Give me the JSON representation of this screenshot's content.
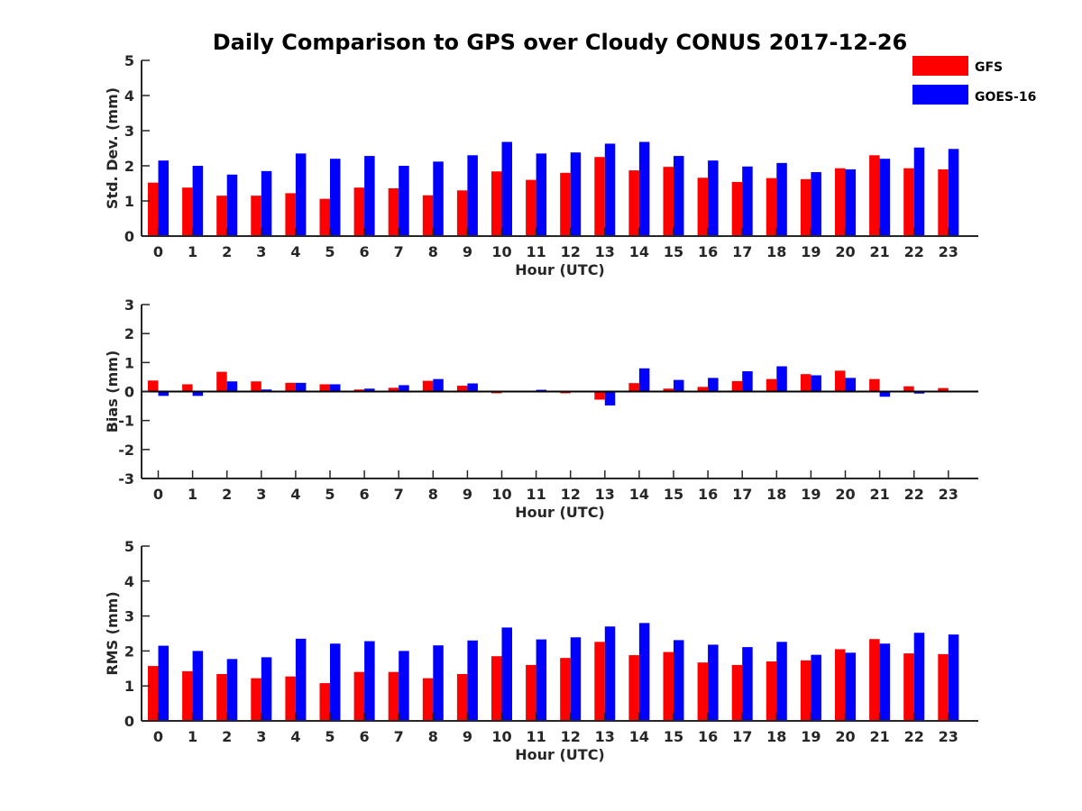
{
  "title": "Daily Comparison to GPS over Cloudy CONUS 2017-12-26",
  "legend": [
    {
      "name": "GFS",
      "color": "#ff0000"
    },
    {
      "name": "GOES-16",
      "color": "#0000ff"
    }
  ],
  "chart_data": [
    {
      "type": "bar",
      "xlabel": "Hour (UTC)",
      "ylabel": "Std. Dev. (mm)",
      "ylim": [
        0,
        5
      ],
      "yticks": [
        0,
        1,
        2,
        3,
        4,
        5
      ],
      "categories": [
        "0",
        "1",
        "2",
        "3",
        "4",
        "5",
        "6",
        "7",
        "8",
        "9",
        "10",
        "11",
        "12",
        "13",
        "14",
        "15",
        "16",
        "17",
        "18",
        "19",
        "20",
        "21",
        "22",
        "23"
      ],
      "series": [
        {
          "name": "GFS",
          "color": "#ff0000",
          "values": [
            1.52,
            1.38,
            1.15,
            1.15,
            1.22,
            1.06,
            1.38,
            1.36,
            1.16,
            1.3,
            1.84,
            1.6,
            1.8,
            2.25,
            1.87,
            1.97,
            1.66,
            1.54,
            1.65,
            1.62,
            1.93,
            2.3,
            1.93,
            1.9
          ]
        },
        {
          "name": "GOES-16",
          "color": "#0000ff",
          "values": [
            2.15,
            2.0,
            1.75,
            1.85,
            2.35,
            2.2,
            2.28,
            2.0,
            2.12,
            2.3,
            2.68,
            2.35,
            2.38,
            2.63,
            2.68,
            2.28,
            2.15,
            1.98,
            2.08,
            1.82,
            1.9,
            2.2,
            2.52,
            2.48
          ]
        }
      ]
    },
    {
      "type": "bar",
      "xlabel": "Hour (UTC)",
      "ylabel": "Bias (mm)",
      "ylim": [
        -3,
        3
      ],
      "yticks": [
        -3,
        -2,
        -1,
        0,
        1,
        2,
        3
      ],
      "categories": [
        "0",
        "1",
        "2",
        "3",
        "4",
        "5",
        "6",
        "7",
        "8",
        "9",
        "10",
        "11",
        "12",
        "13",
        "14",
        "15",
        "16",
        "17",
        "18",
        "19",
        "20",
        "21",
        "22",
        "23"
      ],
      "series": [
        {
          "name": "GFS",
          "color": "#ff0000",
          "values": [
            0.38,
            0.25,
            0.68,
            0.35,
            0.3,
            0.25,
            0.07,
            0.13,
            0.37,
            0.2,
            -0.06,
            0.0,
            -0.06,
            -0.28,
            0.29,
            0.1,
            0.16,
            0.36,
            0.43,
            0.6,
            0.72,
            0.43,
            0.18,
            0.12
          ]
        },
        {
          "name": "GOES-16",
          "color": "#0000ff",
          "values": [
            -0.15,
            -0.15,
            0.35,
            0.07,
            0.3,
            0.25,
            0.1,
            0.22,
            0.43,
            0.28,
            -0.03,
            0.06,
            -0.03,
            -0.48,
            0.8,
            0.4,
            0.47,
            0.7,
            0.87,
            0.56,
            0.47,
            -0.18,
            -0.07,
            -0.03
          ]
        }
      ]
    },
    {
      "type": "bar",
      "xlabel": "Hour (UTC)",
      "ylabel": "RMS (mm)",
      "ylim": [
        0,
        5
      ],
      "yticks": [
        0,
        1,
        2,
        3,
        4,
        5
      ],
      "categories": [
        "0",
        "1",
        "2",
        "3",
        "4",
        "5",
        "6",
        "7",
        "8",
        "9",
        "10",
        "11",
        "12",
        "13",
        "14",
        "15",
        "16",
        "17",
        "18",
        "19",
        "20",
        "21",
        "22",
        "23"
      ],
      "series": [
        {
          "name": "GFS",
          "color": "#ff0000",
          "values": [
            1.57,
            1.42,
            1.34,
            1.22,
            1.27,
            1.08,
            1.4,
            1.4,
            1.22,
            1.34,
            1.85,
            1.6,
            1.8,
            2.26,
            1.88,
            1.97,
            1.67,
            1.6,
            1.7,
            1.73,
            2.05,
            2.34,
            1.93,
            1.91
          ]
        },
        {
          "name": "GOES-16",
          "color": "#0000ff",
          "values": [
            2.15,
            2.0,
            1.77,
            1.82,
            2.35,
            2.21,
            2.28,
            2.0,
            2.16,
            2.3,
            2.67,
            2.33,
            2.39,
            2.7,
            2.8,
            2.31,
            2.18,
            2.11,
            2.26,
            1.89,
            1.95,
            2.21,
            2.52,
            2.47
          ]
        }
      ]
    }
  ]
}
